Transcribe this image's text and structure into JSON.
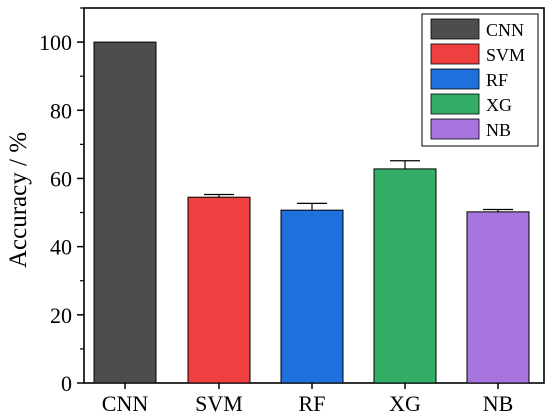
{
  "chart_data": {
    "type": "bar",
    "title": "",
    "xlabel": "",
    "ylabel": "Accuracy / %",
    "categories": [
      "CNN",
      "SVM",
      "RF",
      "XG",
      "NB"
    ],
    "values": [
      100,
      54.5,
      50.7,
      62.8,
      50.2
    ],
    "errors": [
      0,
      0.8,
      2.0,
      2.4,
      0.7
    ],
    "colors": [
      "#4d4d4d",
      "#ee4040",
      "#1f6fdc",
      "#34ad66",
      "#a874dd"
    ],
    "ylim": [
      0,
      110
    ],
    "yticks": [
      0,
      20,
      40,
      60,
      80,
      100
    ],
    "legend": {
      "position": "top-right",
      "entries": [
        "CNN",
        "SVM",
        "RF",
        "XG",
        "NB"
      ]
    },
    "grid": false
  }
}
